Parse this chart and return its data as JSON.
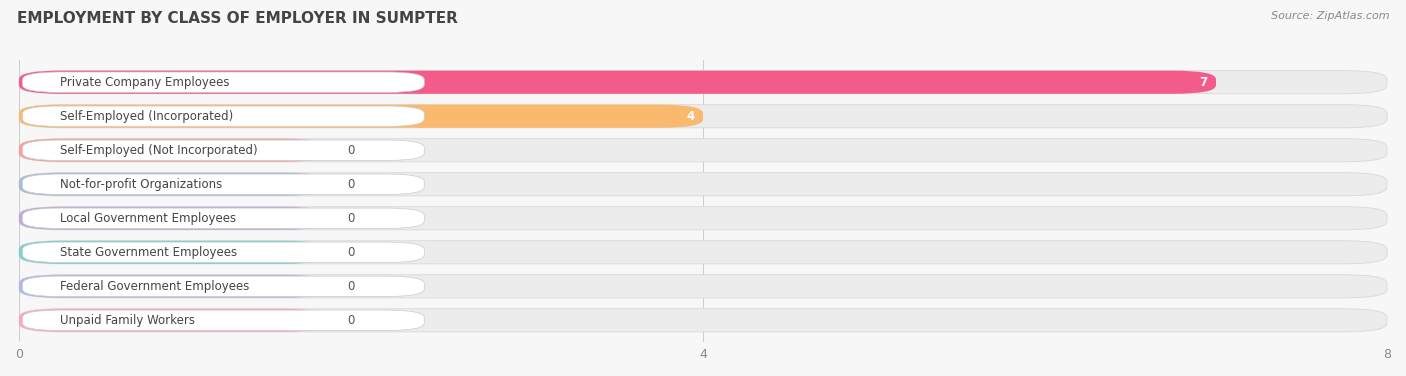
{
  "title": "EMPLOYMENT BY CLASS OF EMPLOYER IN SUMPTER",
  "source": "Source: ZipAtlas.com",
  "categories": [
    "Private Company Employees",
    "Self-Employed (Incorporated)",
    "Self-Employed (Not Incorporated)",
    "Not-for-profit Organizations",
    "Local Government Employees",
    "State Government Employees",
    "Federal Government Employees",
    "Unpaid Family Workers"
  ],
  "values": [
    7,
    4,
    0,
    0,
    0,
    0,
    0,
    0
  ],
  "bar_colors": [
    "#F25B8A",
    "#F9B96E",
    "#F4A0A0",
    "#A8BCD8",
    "#C3A8D8",
    "#7ECECE",
    "#B0B8E8",
    "#F9A8C0"
  ],
  "xlim": [
    0,
    8
  ],
  "xticks": [
    0,
    4,
    8
  ],
  "background_color": "#f7f7f7",
  "row_bg_color": "#f0f0f0",
  "title_fontsize": 11,
  "label_fontsize": 8.5,
  "value_fontsize": 8.5
}
